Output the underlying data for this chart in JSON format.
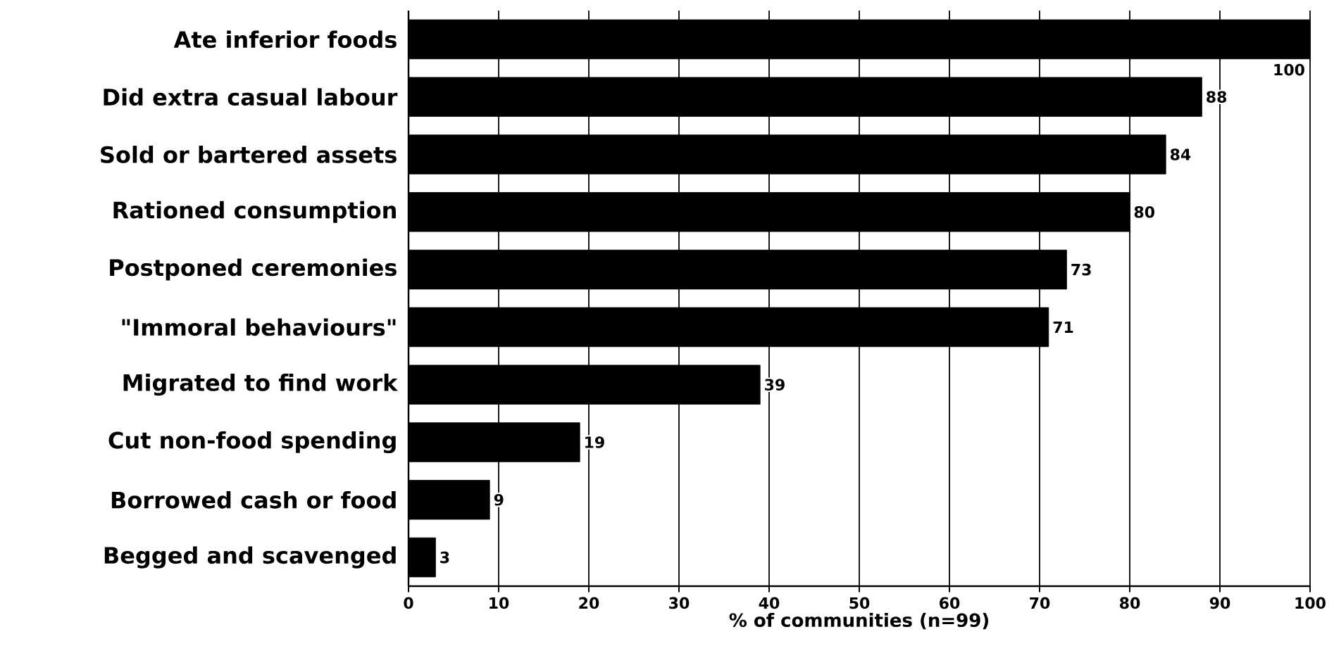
{
  "chart_data": {
    "type": "bar",
    "orientation": "horizontal",
    "xlabel": "% of communities (n=99)",
    "categories": [
      "Ate inferior foods",
      "Did extra casual labour",
      "Sold or bartered assets",
      "Rationed consumption",
      "Postponed ceremonies",
      "\"Immoral behaviours\"",
      "Migrated to find work",
      "Cut non-food spending",
      "Borrowed cash or food",
      "Begged and scavenged"
    ],
    "values": [
      100,
      88,
      84,
      80,
      73,
      71,
      39,
      19,
      9,
      3
    ],
    "color": "#000000",
    "data_labels": true,
    "grid": "x",
    "xlim": [
      0,
      100
    ],
    "xticks": [
      0,
      10,
      20,
      30,
      40,
      50,
      60,
      70,
      80,
      90,
      100
    ]
  }
}
